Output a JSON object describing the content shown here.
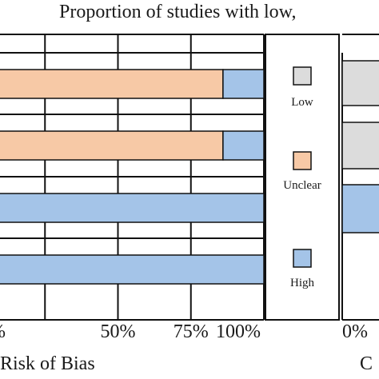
{
  "title": "Proportion of studies with low, ",
  "colors": {
    "low": "#dcdcdc",
    "unclear": "#f7c9a6",
    "high": "#a4c4e8",
    "border": "#111111"
  },
  "chart_data": [
    {
      "type": "bar",
      "orientation": "horizontal",
      "stacked": true,
      "xlabel": "Risk of Bias",
      "xlim": [
        0,
        100
      ],
      "tick_labels": [
        {
          "value": 25,
          "label": "%"
        },
        {
          "value": 50,
          "label": "50%"
        },
        {
          "value": 75,
          "label": "75%"
        },
        {
          "value": 100,
          "label": "100%"
        }
      ],
      "rows": [
        {
          "unclear": 86,
          "high": 14
        },
        {
          "unclear": 86,
          "high": 14
        },
        {
          "unclear": 0,
          "high": 100
        },
        {
          "unclear": 0,
          "high": 100
        }
      ],
      "grid": true
    },
    {
      "type": "bar",
      "orientation": "horizontal",
      "stacked": true,
      "xlabel": "C",
      "tick_labels": [
        {
          "value": 0,
          "label": "0%"
        }
      ],
      "rows": [
        {
          "low": 100
        },
        {
          "low": 100
        },
        {
          "high": 100
        },
        {}
      ]
    }
  ],
  "legend": {
    "placement": "center",
    "items": [
      {
        "key": "low",
        "label": "Low"
      },
      {
        "key": "unclear",
        "label": "Unclear"
      },
      {
        "key": "high",
        "label": "High"
      }
    ]
  }
}
